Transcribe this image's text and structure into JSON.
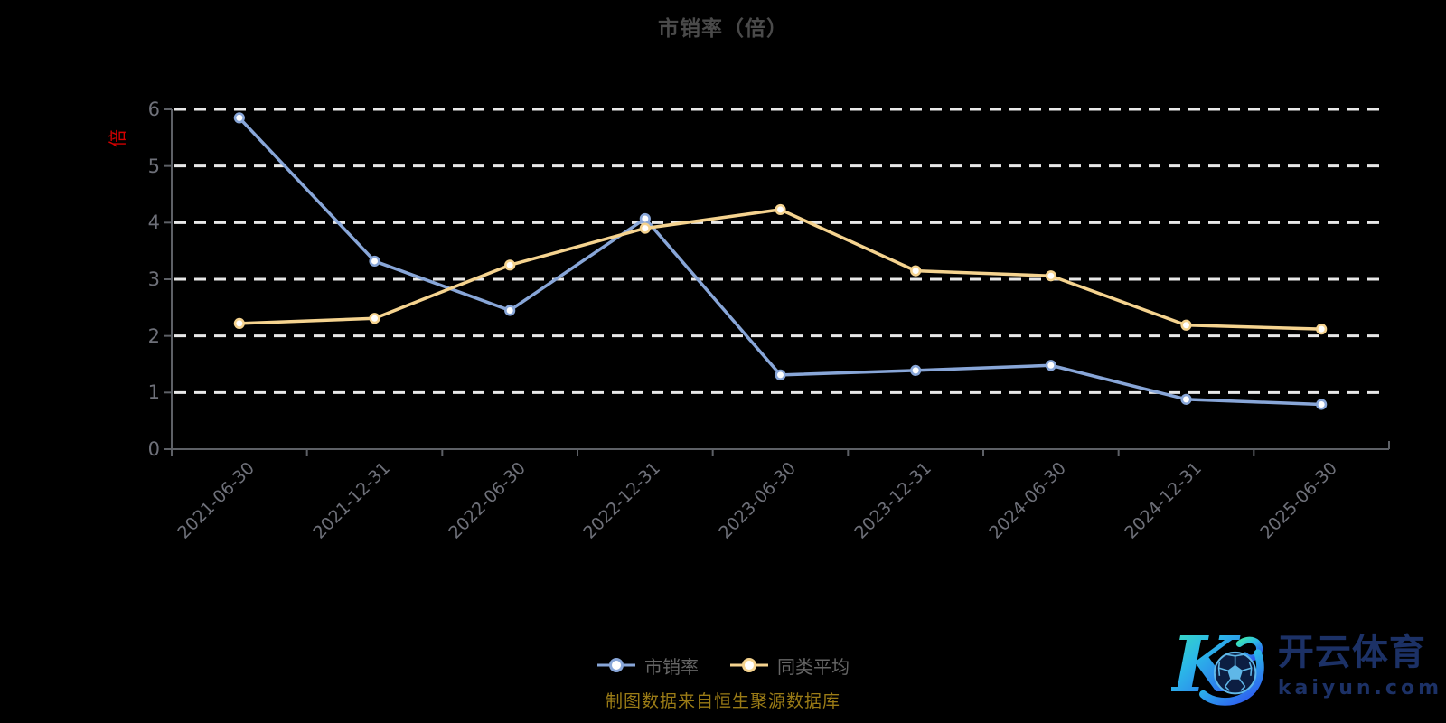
{
  "title": "市销率（倍）",
  "caption": "制图数据来自恒生聚源数据库",
  "chart_data": {
    "type": "line",
    "categories": [
      "2021-06-30",
      "2021-12-31",
      "2022-06-30",
      "2022-12-31",
      "2023-06-30",
      "2023-12-31",
      "2024-06-30",
      "2024-12-31",
      "2025-06-30"
    ],
    "series": [
      {
        "name": "市销率",
        "color": "#88a6d8",
        "values": [
          5.85,
          3.32,
          2.45,
          4.07,
          1.31,
          1.39,
          1.48,
          0.88,
          0.79
        ]
      },
      {
        "name": "同类平均",
        "color": "#f5d38f",
        "values": [
          2.22,
          2.31,
          3.25,
          3.9,
          4.23,
          3.15,
          3.06,
          2.19,
          2.12
        ]
      }
    ],
    "xlabel": "",
    "ylabel": "倍",
    "ylim": [
      0,
      6
    ],
    "yticks": [
      0,
      1,
      2,
      3,
      4,
      5,
      6
    ],
    "grid": "horizontal-dashed",
    "legend_position": "bottom",
    "marker": "circle-hollow"
  },
  "colors": {
    "background": "#000000",
    "title": "#4a4a4a",
    "axis_line": "#5d6066",
    "tick_label": "#6e7079",
    "gridline": "#e8e8e8",
    "y_unit": "#d40000",
    "legend_text": "#666666",
    "caption": "#9a7b16",
    "watermark_text": "#1c3166",
    "logo_gradient_start": "#3de6b1",
    "logo_gradient_end": "#2e5ff0"
  },
  "watermark": {
    "logo_letter": "K",
    "brand": "开云体育",
    "domain": "kaiyun.com"
  }
}
